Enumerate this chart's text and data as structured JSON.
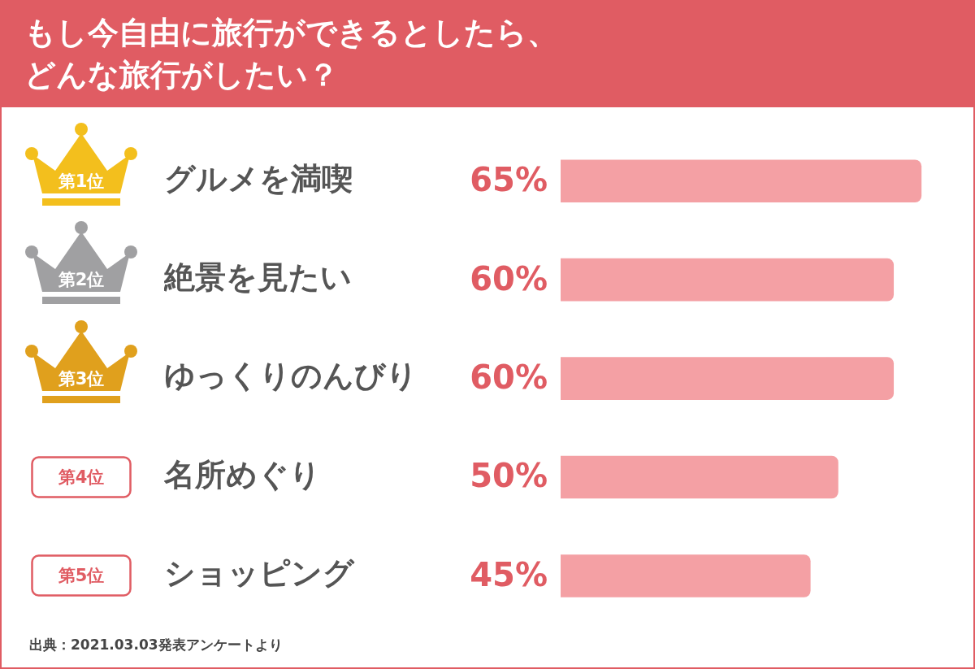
{
  "chart_data": {
    "type": "bar",
    "orientation": "horizontal",
    "title": "もし今自由に旅行ができるとしたら、どんな旅行がしたい？",
    "categories": [
      "グルメを満喫",
      "絶景を見たい",
      "ゆっくりのんびり",
      "名所めぐり",
      "ショッピング"
    ],
    "values": [
      65,
      60,
      60,
      50,
      45
    ],
    "value_labels": [
      "65%",
      "60%",
      "60%",
      "50%",
      "45%"
    ],
    "color": "#f4a0a4",
    "tick_labels": "y",
    "annotations": [
      "第1位",
      "第2位",
      "第3位",
      "第4位",
      "第5位",
      "出典：2021.03.03発表アンケートより"
    ]
  }
}
